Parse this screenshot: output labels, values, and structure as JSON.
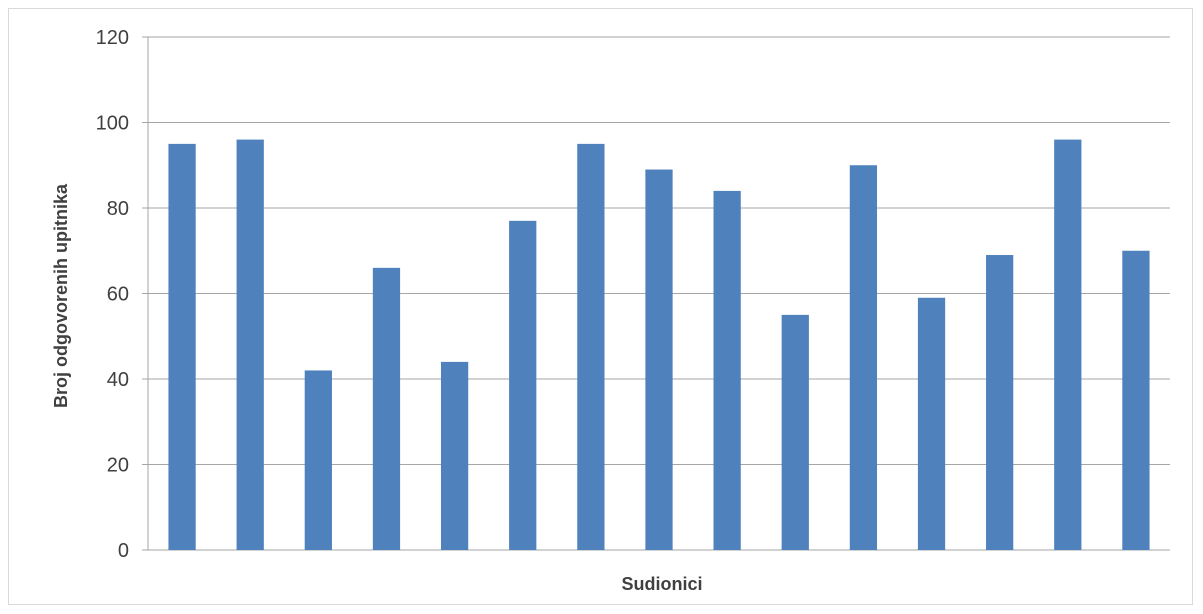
{
  "chart_data": {
    "type": "bar",
    "title": "",
    "xlabel": "Sudionici",
    "ylabel": "Broj odgovorenih upitnika",
    "categories": [
      "",
      "",
      "",
      "",
      "",
      "",
      "",
      "",
      "",
      "",
      "",
      "",
      "",
      "",
      ""
    ],
    "series": [
      {
        "values": [
          95,
          96,
          42,
          66,
          44,
          77,
          95,
          89,
          84,
          55,
          90,
          59,
          69,
          96,
          70
        ]
      }
    ],
    "ylim": [
      0,
      120
    ],
    "yticks": [
      0,
      20,
      40,
      60,
      80,
      100,
      120
    ],
    "ytick_labels": [
      "0",
      "20",
      "40",
      "60",
      "80",
      "100",
      "120"
    ],
    "grid": true,
    "legend": "none",
    "colors": {
      "bar": "#4f81bd",
      "grid": "#a6a6a6",
      "text": "#404040",
      "frame": "#d9d9d9"
    }
  }
}
